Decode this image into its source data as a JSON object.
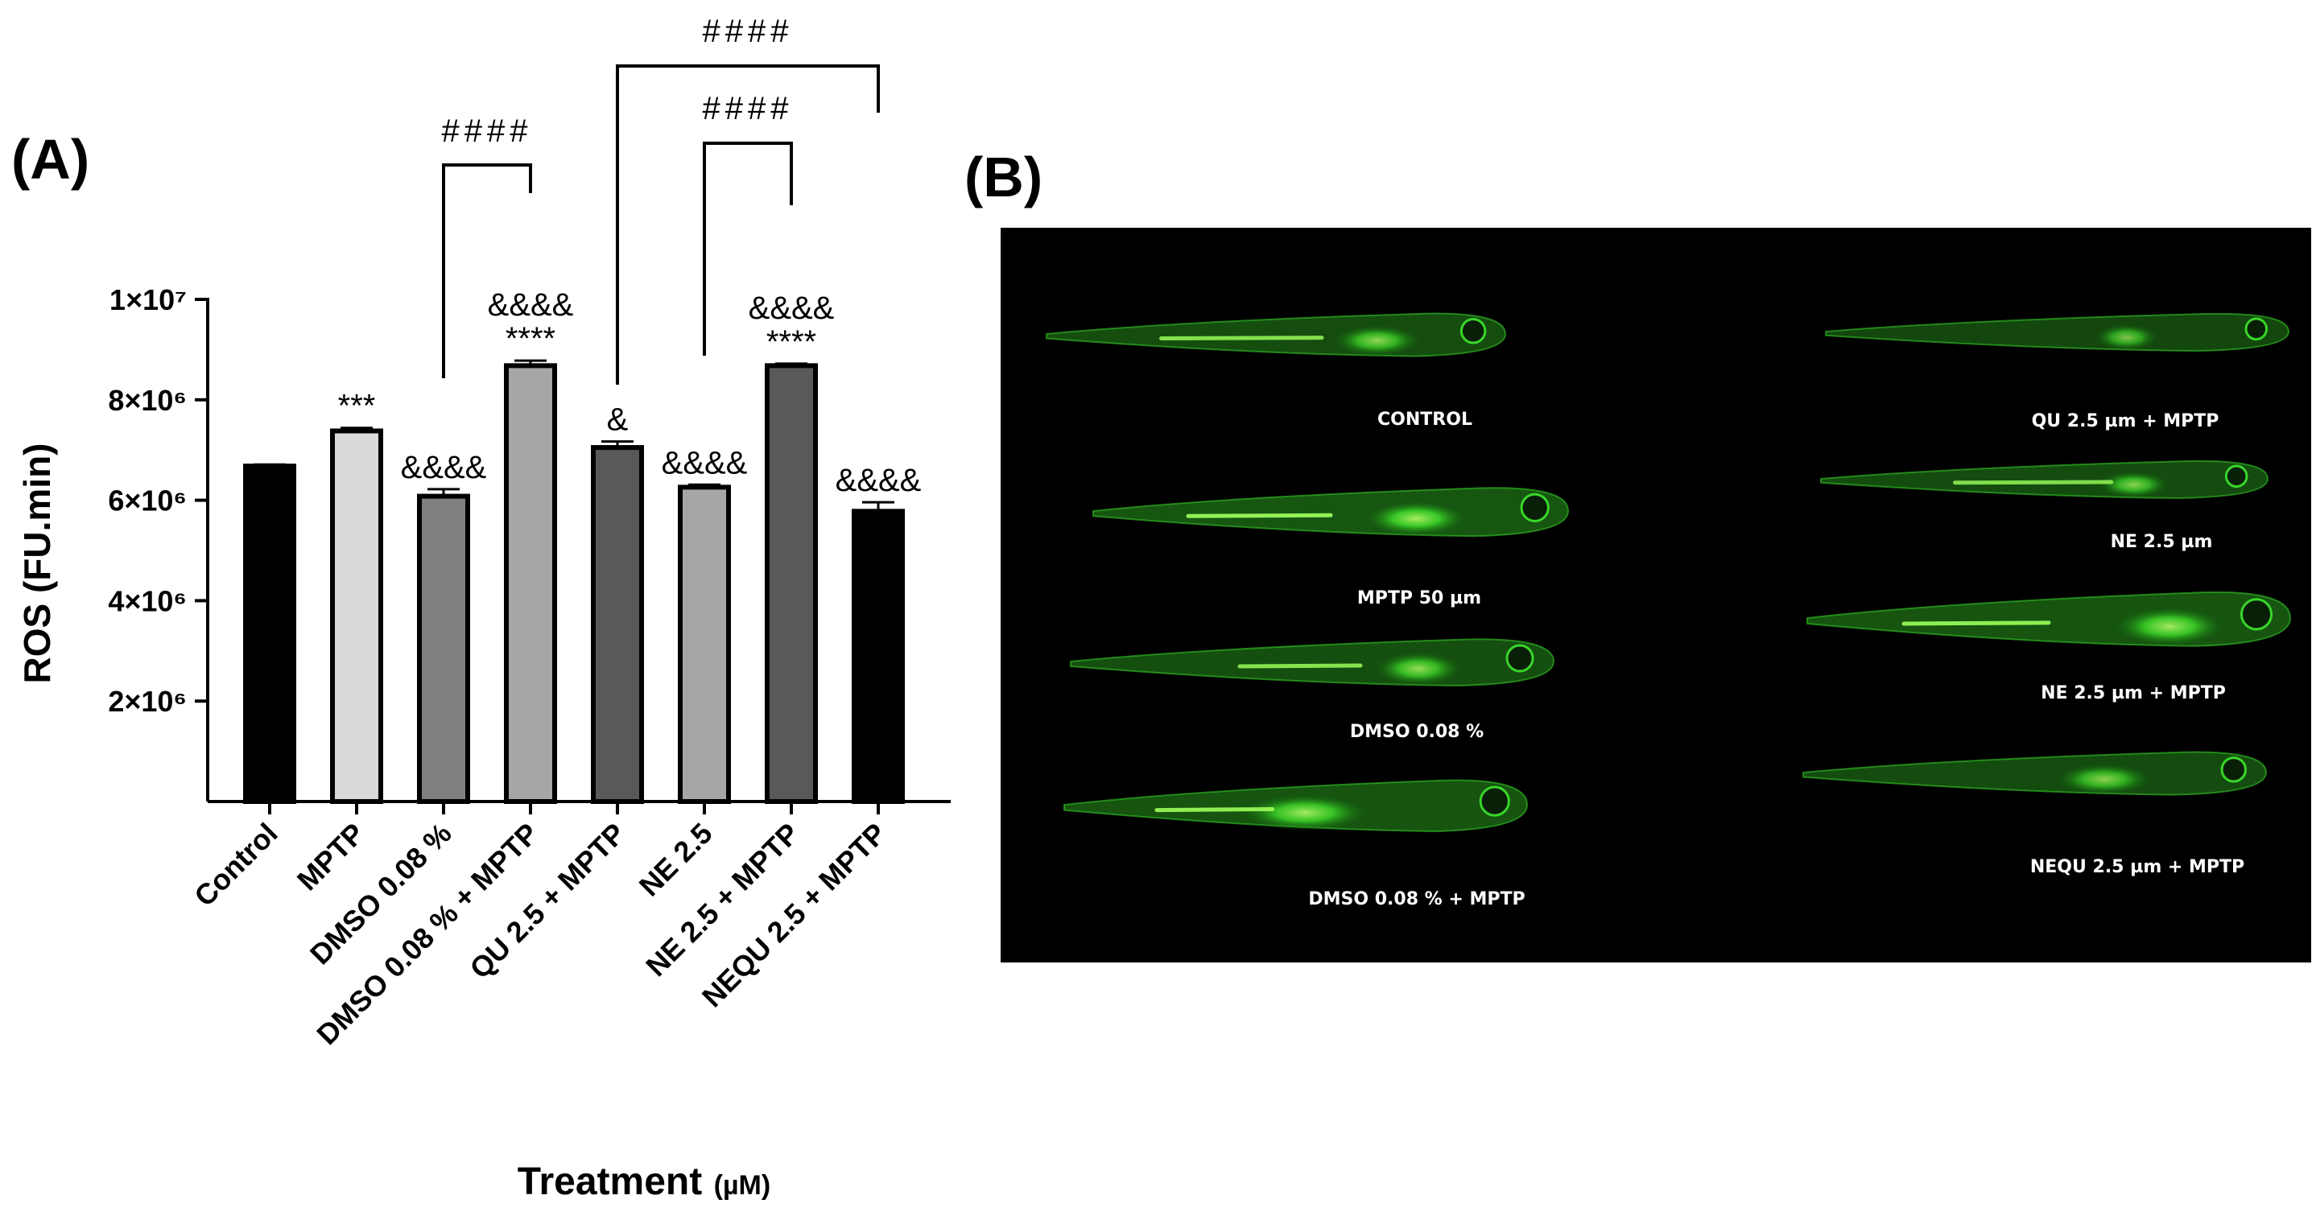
{
  "panels": {
    "a_label": "(A)",
    "b_label": "(B)"
  },
  "chart_data": {
    "type": "bar",
    "title": "",
    "xlabel_main": "Treatment",
    "xlabel_unit": "(µM)",
    "ylabel": "ROS (FU.min)",
    "ylim": [
      0,
      10000000
    ],
    "yticks": [
      {
        "value": 2000000,
        "label": "2×10⁶"
      },
      {
        "value": 4000000,
        "label": "4×10⁶"
      },
      {
        "value": 6000000,
        "label": "6×10⁶"
      },
      {
        "value": 8000000,
        "label": "8×10⁶"
      },
      {
        "value": 10000000,
        "label": "1×10⁷"
      }
    ],
    "categories": [
      "Control",
      "MPTP",
      "DMSO 0.08 %",
      "DMSO 0.08 % + MPTP",
      "QU 2.5 + MPTP",
      "NE 2.5",
      "NE 2.5 + MPTP",
      "NEQU 2.5 + MPTP"
    ],
    "values": [
      6680000,
      7380000,
      6080000,
      8680000,
      7050000,
      6260000,
      8680000,
      5780000
    ],
    "errors": [
      30000,
      60000,
      140000,
      100000,
      120000,
      50000,
      40000,
      180000
    ],
    "bar_colors": [
      "#000000",
      "#d9d9d9",
      "#7f7f7f",
      "#a6a6a6",
      "#595959",
      "#a6a6a6",
      "#595959",
      "#000000"
    ],
    "annotations": [
      [
        "",
        ""
      ],
      [
        "",
        "***"
      ],
      [
        "",
        "&&&&"
      ],
      [
        "&&&&",
        "****"
      ],
      [
        "",
        "&"
      ],
      [
        "",
        "&&&&"
      ],
      [
        "&&&&",
        "****"
      ],
      [
        "",
        "&&&&"
      ]
    ],
    "brackets": [
      {
        "from": 2,
        "to": 3,
        "label": "####"
      },
      {
        "from": 5,
        "to": 6,
        "label": "####"
      },
      {
        "from": 4,
        "to": 7,
        "label": "####"
      }
    ]
  },
  "images": {
    "captions": [
      "CONTROL",
      "MPTP 50 µm",
      "DMSO 0.08 %",
      "DMSO 0.08 % + MPTP",
      "QU 2.5 µm + MPTP",
      "NE 2.5 µm",
      "NE 2.5 µm + MPTP",
      "NEQU 2.5 µm + MPTP"
    ],
    "background": "#000000",
    "fluorescence_color": "#39d62a"
  }
}
